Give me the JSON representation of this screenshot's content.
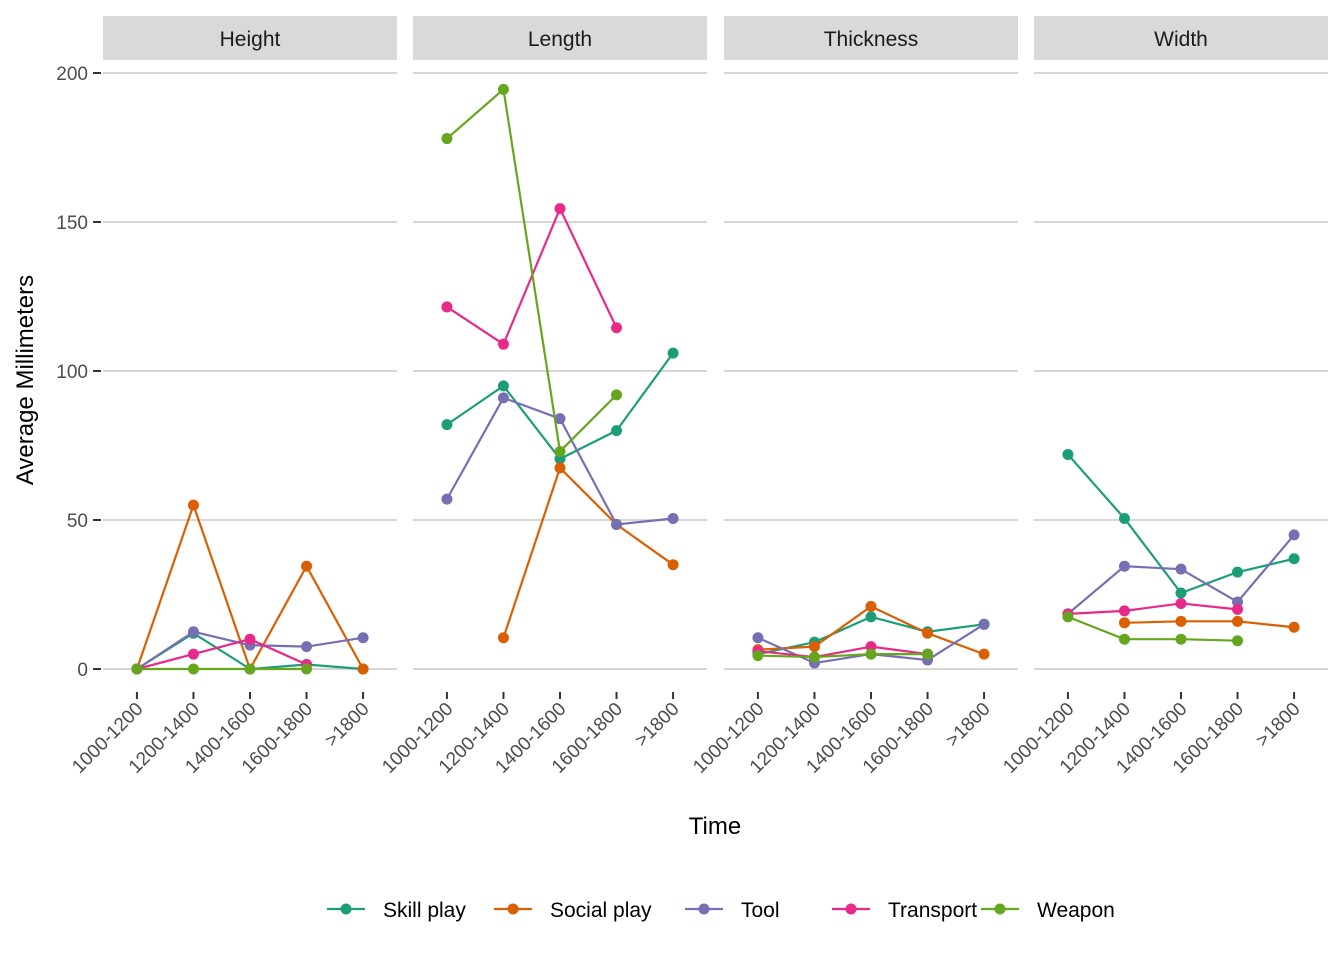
{
  "chart_data": {
    "type": "line",
    "faceted": true,
    "xlabel": "Time",
    "ylabel": "Average Millimeters",
    "categories": [
      "1000-1200",
      "1200-1400",
      "1400-1600",
      "1600-1800",
      ">1800"
    ],
    "ylim": [
      -8,
      200
    ],
    "yticks": [
      0,
      50,
      100,
      150,
      200
    ],
    "legend_position": "bottom",
    "series_colors": {
      "Skill play": "#1b9e77",
      "Social play": "#d95f02",
      "Tool": "#7570b3",
      "Transport": "#e7298a",
      "Weapon": "#66a61e"
    },
    "legend": [
      "Skill play",
      "Social play",
      "Tool",
      "Transport",
      "Weapon"
    ],
    "panels": [
      {
        "title": "Height",
        "series": [
          {
            "name": "Skill play",
            "values": [
              0,
              12,
              0,
              1.5,
              0
            ]
          },
          {
            "name": "Social play",
            "values": [
              0,
              55,
              0,
              34.5,
              0
            ]
          },
          {
            "name": "Tool",
            "values": [
              0,
              12.5,
              8,
              7.5,
              10.5
            ]
          },
          {
            "name": "Transport",
            "values": [
              0,
              5,
              10,
              1.5,
              null
            ]
          },
          {
            "name": "Weapon",
            "values": [
              0,
              0,
              0,
              0,
              null
            ]
          }
        ]
      },
      {
        "title": "Length",
        "series": [
          {
            "name": "Skill play",
            "values": [
              82,
              95,
              70.5,
              80,
              106
            ]
          },
          {
            "name": "Social play",
            "values": [
              null,
              10.5,
              67.5,
              48.5,
              35
            ]
          },
          {
            "name": "Tool",
            "values": [
              57,
              91,
              84,
              48.5,
              50.5
            ]
          },
          {
            "name": "Transport",
            "values": [
              121.5,
              109,
              154.5,
              114.5,
              null
            ]
          },
          {
            "name": "Weapon",
            "values": [
              178,
              194.5,
              73,
              92,
              null
            ]
          }
        ]
      },
      {
        "title": "Thickness",
        "series": [
          {
            "name": "Skill play",
            "values": [
              5,
              9,
              17.5,
              12.5,
              15
            ]
          },
          {
            "name": "Social play",
            "values": [
              6.5,
              7.5,
              21,
              12,
              5
            ]
          },
          {
            "name": "Tool",
            "values": [
              10.5,
              2,
              5,
              3,
              15
            ]
          },
          {
            "name": "Transport",
            "values": [
              6,
              4,
              7.5,
              5,
              null
            ]
          },
          {
            "name": "Weapon",
            "values": [
              4.5,
              4,
              5,
              5,
              null
            ]
          }
        ]
      },
      {
        "title": "Width",
        "series": [
          {
            "name": "Skill play",
            "values": [
              72,
              50.5,
              25.5,
              32.5,
              37
            ]
          },
          {
            "name": "Social play",
            "values": [
              null,
              15.5,
              16,
              16,
              14
            ]
          },
          {
            "name": "Tool",
            "values": [
              18.5,
              34.5,
              33.5,
              22.5,
              45
            ]
          },
          {
            "name": "Transport",
            "values": [
              18.5,
              19.5,
              22,
              20,
              null
            ]
          },
          {
            "name": "Weapon",
            "values": [
              17.5,
              10,
              10,
              9.5,
              null
            ]
          }
        ]
      }
    ]
  }
}
